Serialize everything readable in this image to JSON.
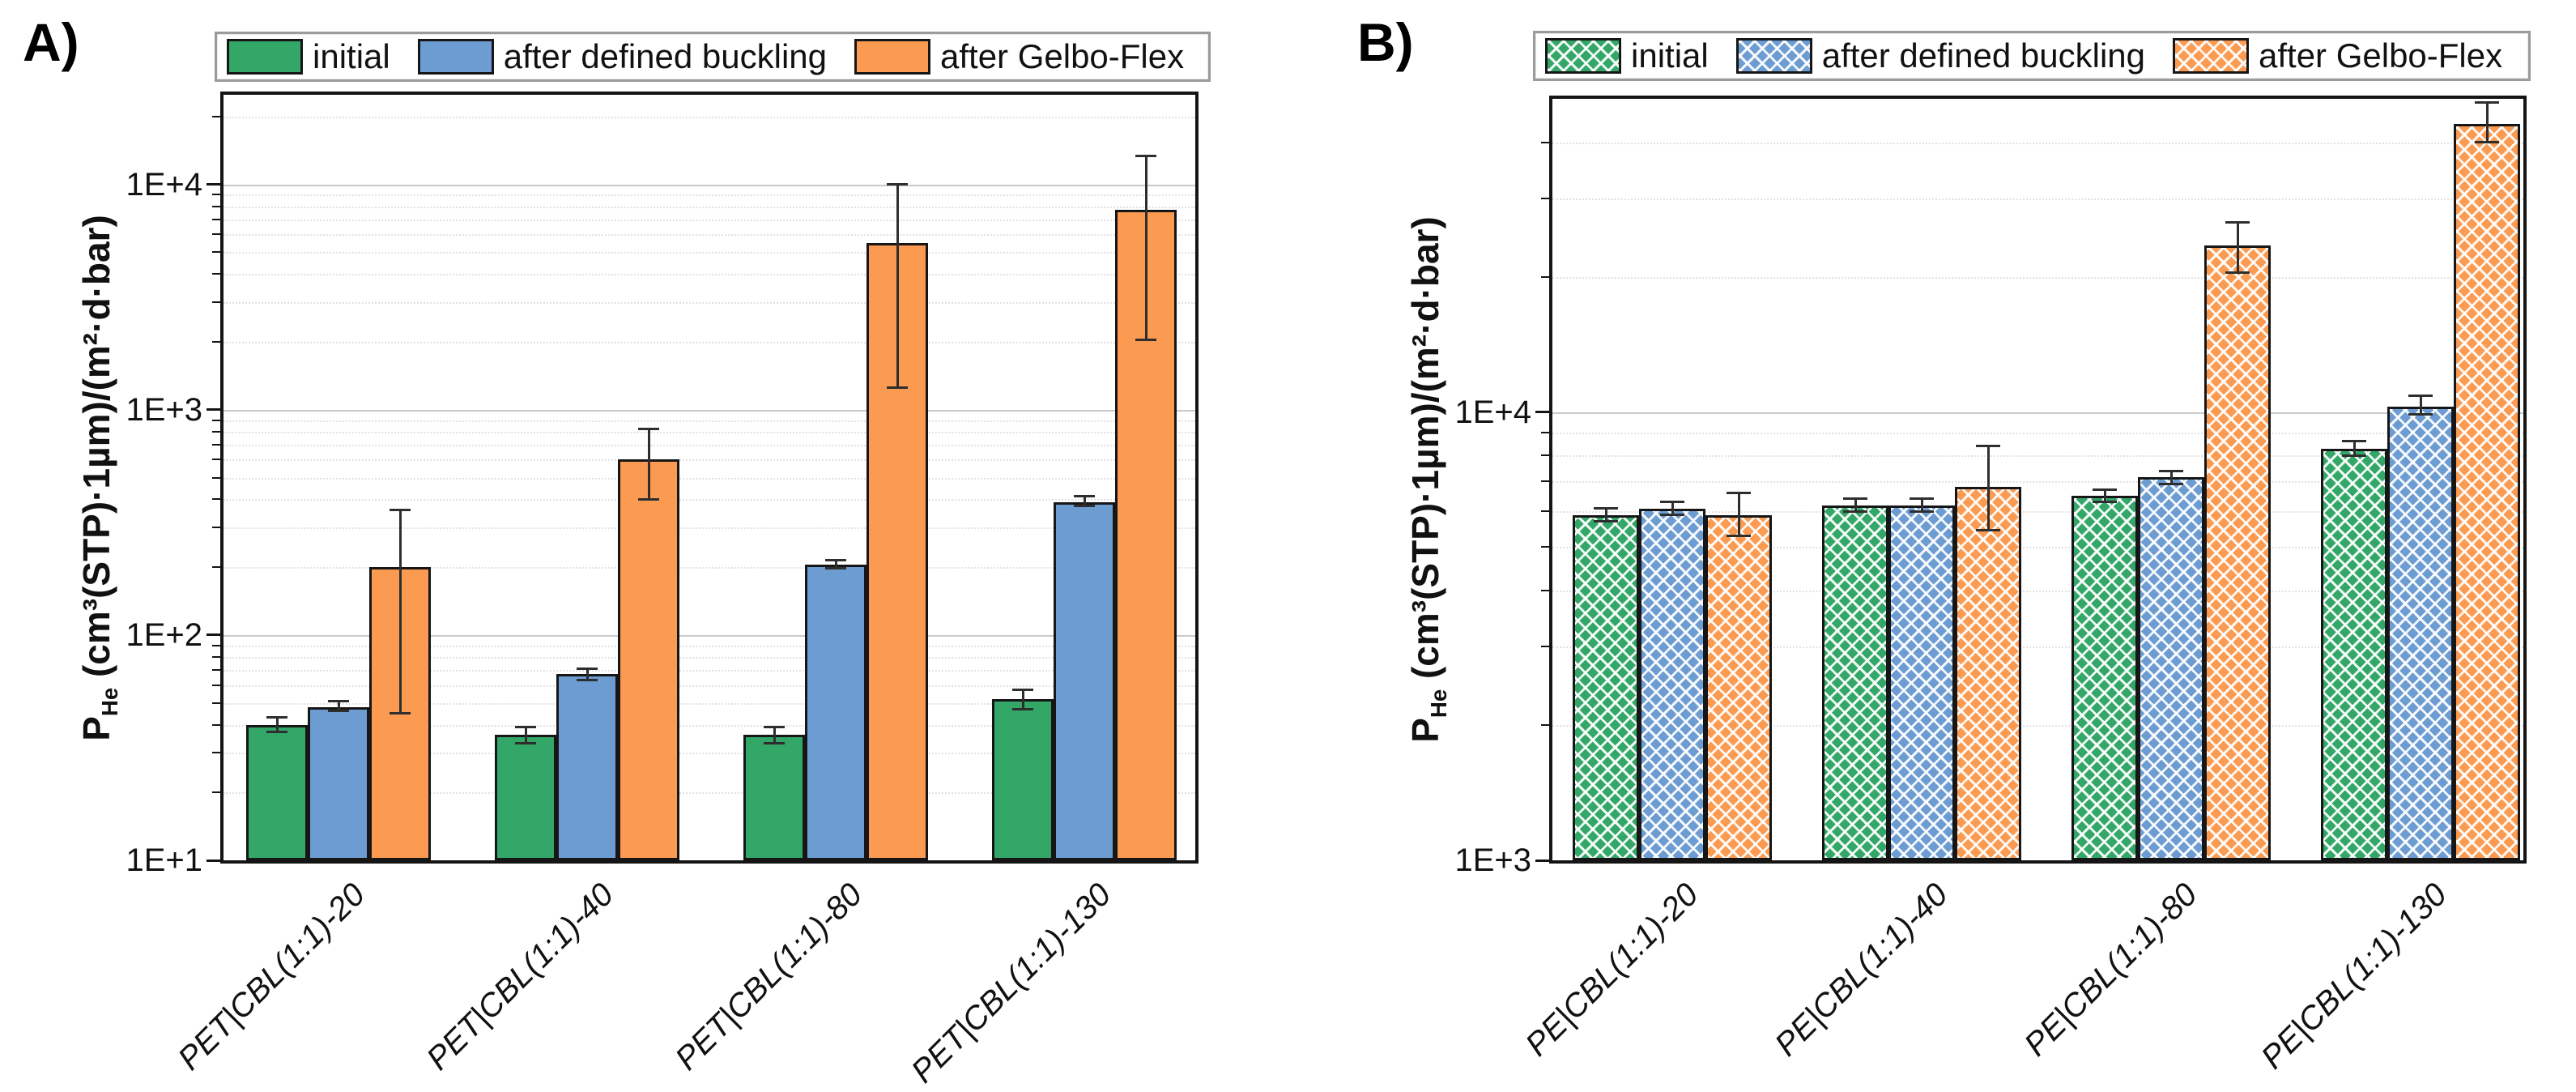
{
  "chart_data": [
    {
      "type": "bar",
      "panel": "A)",
      "yscale": "log",
      "ylabel": "P_He (cm³(STP)·1µm)/(m²·d·bar)",
      "ylabel_parts": {
        "base": "P",
        "sub": "He",
        "rest": " (cm³(STP)·1µm)/(m²·d·bar)"
      },
      "ylim": [
        10,
        25000
      ],
      "yticks": [
        {
          "value": 10,
          "label": "1E+1"
        },
        {
          "value": 100,
          "label": "1E+2"
        },
        {
          "value": 1000,
          "label": "1E+3"
        },
        {
          "value": 10000,
          "label": "1E+4"
        }
      ],
      "grid": {
        "major": "solid",
        "minor": "dotted"
      },
      "legend_position": "top",
      "bar_pattern": "solid",
      "categories": [
        "PET|CBL(1:1)-20",
        "PET|CBL(1:1)-40",
        "PET|CBL(1:1)-80",
        "PET|CBL(1:1)-130"
      ],
      "series": [
        {
          "name": "initial",
          "color": "#33A768",
          "values": [
            40,
            36,
            36,
            52
          ],
          "err_low": [
            37,
            33,
            33,
            47
          ],
          "err_high": [
            43,
            39,
            39,
            57
          ]
        },
        {
          "name": "after defined buckling",
          "color": "#6C9CD2",
          "values": [
            48,
            67,
            205,
            390
          ],
          "err_low": [
            46,
            63,
            198,
            375
          ],
          "err_high": [
            51,
            71,
            215,
            415
          ]
        },
        {
          "name": "after Gelbo-Flex",
          "color": "#FB9A51",
          "values": [
            200,
            600,
            5500,
            7700
          ],
          "err_low": [
            45,
            400,
            1250,
            2050
          ],
          "err_high": [
            360,
            820,
            10000,
            13400
          ]
        }
      ]
    },
    {
      "type": "bar",
      "panel": "B)",
      "yscale": "log",
      "ylabel": "P_He (cm³(STP)·1µm)/(m²·d·bar)",
      "ylabel_parts": {
        "base": "P",
        "sub": "He",
        "rest": " (cm³(STP)·1µm)/(m²·d·bar)"
      },
      "ylim": [
        1000,
        50000
      ],
      "yticks": [
        {
          "value": 1000,
          "label": "1E+3"
        },
        {
          "value": 10000,
          "label": "1E+4"
        }
      ],
      "grid": {
        "major": "solid",
        "minor": "dotted"
      },
      "legend_position": "top",
      "bar_pattern": "crosshatch",
      "categories": [
        "PE|CBL(1:1)-20",
        "PE|CBL(1:1)-40",
        "PE|CBL(1:1)-80",
        "PE|CBL(1:1)-130"
      ],
      "series": [
        {
          "name": "initial",
          "color": "#33A768",
          "values": [
            5900,
            6200,
            6500,
            8300
          ],
          "err_low": [
            5700,
            6000,
            6300,
            8000
          ],
          "err_high": [
            6100,
            6400,
            6700,
            8600
          ]
        },
        {
          "name": "after defined buckling",
          "color": "#6C9CD2",
          "values": [
            6100,
            6200,
            7150,
            10300
          ],
          "err_low": [
            5900,
            6000,
            6900,
            9900
          ],
          "err_high": [
            6300,
            6400,
            7400,
            10900
          ]
        },
        {
          "name": "after Gelbo-Flex",
          "color": "#FB9A51",
          "values": [
            5900,
            6800,
            23500,
            44000
          ],
          "err_low": [
            5300,
            5450,
            20500,
            40000
          ],
          "err_high": [
            6600,
            8400,
            26500,
            49000
          ]
        }
      ]
    }
  ]
}
